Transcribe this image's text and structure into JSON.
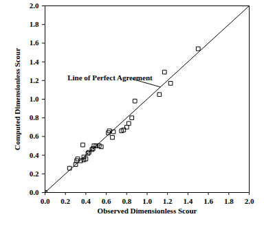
{
  "chart_data": {
    "type": "scatter",
    "x_label": "Observed Dimensionless Scour",
    "y_label": "Computed Dimensionless Scour",
    "color": "#000000",
    "marker": "square",
    "x": [
      0.0,
      0.24,
      0.3,
      0.31,
      0.32,
      0.35,
      0.37,
      0.38,
      0.38,
      0.4,
      0.42,
      0.43,
      0.46,
      0.47,
      0.48,
      0.5,
      0.53,
      0.55,
      0.62,
      0.63,
      0.66,
      0.67,
      0.75,
      0.77,
      0.8,
      0.82,
      0.85,
      0.88,
      1.12,
      1.17,
      1.23,
      1.5
    ],
    "values": [
      0.0,
      0.26,
      0.3,
      0.34,
      0.36,
      0.34,
      0.51,
      0.38,
      0.35,
      0.36,
      0.42,
      0.43,
      0.46,
      0.47,
      0.5,
      0.5,
      0.5,
      0.49,
      0.64,
      0.66,
      0.59,
      0.65,
      0.66,
      0.67,
      0.7,
      0.74,
      0.8,
      0.98,
      1.05,
      1.29,
      1.17,
      1.54
    ],
    "reference_line": {
      "label": "Line of Perfect Agreement",
      "x": [
        0,
        2
      ],
      "y": [
        0,
        2
      ],
      "color": "#000000"
    },
    "xlim": [
      0,
      2
    ],
    "ylim": [
      0,
      2
    ],
    "xticks": [
      {
        "value": 0,
        "label": "0.0"
      },
      0.2,
      0.4,
      0.6,
      0.8,
      {
        "value": 1,
        "label": "1.0"
      },
      1.2,
      1.4,
      1.6,
      1.8,
      {
        "value": 2,
        "label": "2.0"
      }
    ],
    "yticks": [
      {
        "value": 0,
        "label": "0.0"
      },
      0.2,
      0.4,
      0.6,
      0.8,
      {
        "value": 1,
        "label": "1.0"
      },
      1.2,
      1.4,
      1.6,
      1.8,
      {
        "value": 2,
        "label": "2.0"
      }
    ],
    "grid": false
  }
}
